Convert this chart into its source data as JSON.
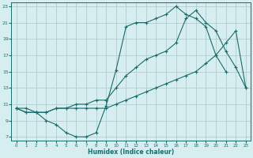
{
  "title": "",
  "xlabel": "Humidex (Indice chaleur)",
  "ylabel": "",
  "bg_color": "#d6eef0",
  "grid_color": "#b0cdd0",
  "line_color": "#1a6b6b",
  "xlim": [
    -0.5,
    23.5
  ],
  "ylim": [
    6.5,
    23.5
  ],
  "xticks": [
    0,
    1,
    2,
    3,
    4,
    5,
    6,
    7,
    8,
    9,
    10,
    11,
    12,
    13,
    14,
    15,
    16,
    17,
    18,
    19,
    20,
    21,
    22,
    23
  ],
  "yticks": [
    7,
    9,
    11,
    13,
    15,
    17,
    19,
    21,
    23
  ],
  "series": {
    "line1_x": [
      0,
      1,
      2,
      3,
      4,
      5,
      6,
      7,
      8,
      9,
      10,
      11,
      12,
      13,
      14,
      15,
      16,
      17,
      18,
      19,
      20,
      21
    ],
    "line1_y": [
      10.5,
      10.0,
      10.0,
      9.0,
      8.5,
      7.5,
      7.0,
      7.0,
      7.5,
      10.8,
      15.2,
      20.5,
      21.0,
      21.0,
      21.5,
      22.0,
      23.0,
      22.0,
      21.5,
      20.5,
      17.0,
      15.0
    ],
    "line2_x": [
      0,
      1,
      2,
      3,
      4,
      5,
      6,
      7,
      8,
      9,
      10,
      11,
      12,
      13,
      14,
      15,
      16,
      17,
      18,
      19,
      20,
      21,
      22,
      23
    ],
    "line2_y": [
      10.5,
      10.5,
      10.0,
      10.0,
      10.5,
      10.5,
      10.5,
      10.5,
      10.5,
      10.5,
      11.0,
      11.5,
      12.0,
      12.5,
      13.0,
      13.5,
      14.0,
      14.5,
      15.0,
      16.0,
      17.0,
      18.5,
      20.0,
      13.0
    ],
    "line3_x": [
      0,
      1,
      2,
      3,
      4,
      5,
      6,
      7,
      8,
      9,
      10,
      11,
      12,
      13,
      14,
      15,
      16,
      17,
      18,
      19,
      20,
      21,
      22,
      23
    ],
    "line3_y": [
      10.5,
      10.0,
      10.0,
      10.0,
      10.5,
      10.5,
      11.0,
      11.0,
      11.5,
      11.5,
      13.0,
      14.5,
      15.5,
      16.5,
      17.0,
      17.5,
      18.5,
      21.5,
      22.5,
      21.0,
      20.0,
      17.5,
      15.5,
      13.0
    ]
  }
}
